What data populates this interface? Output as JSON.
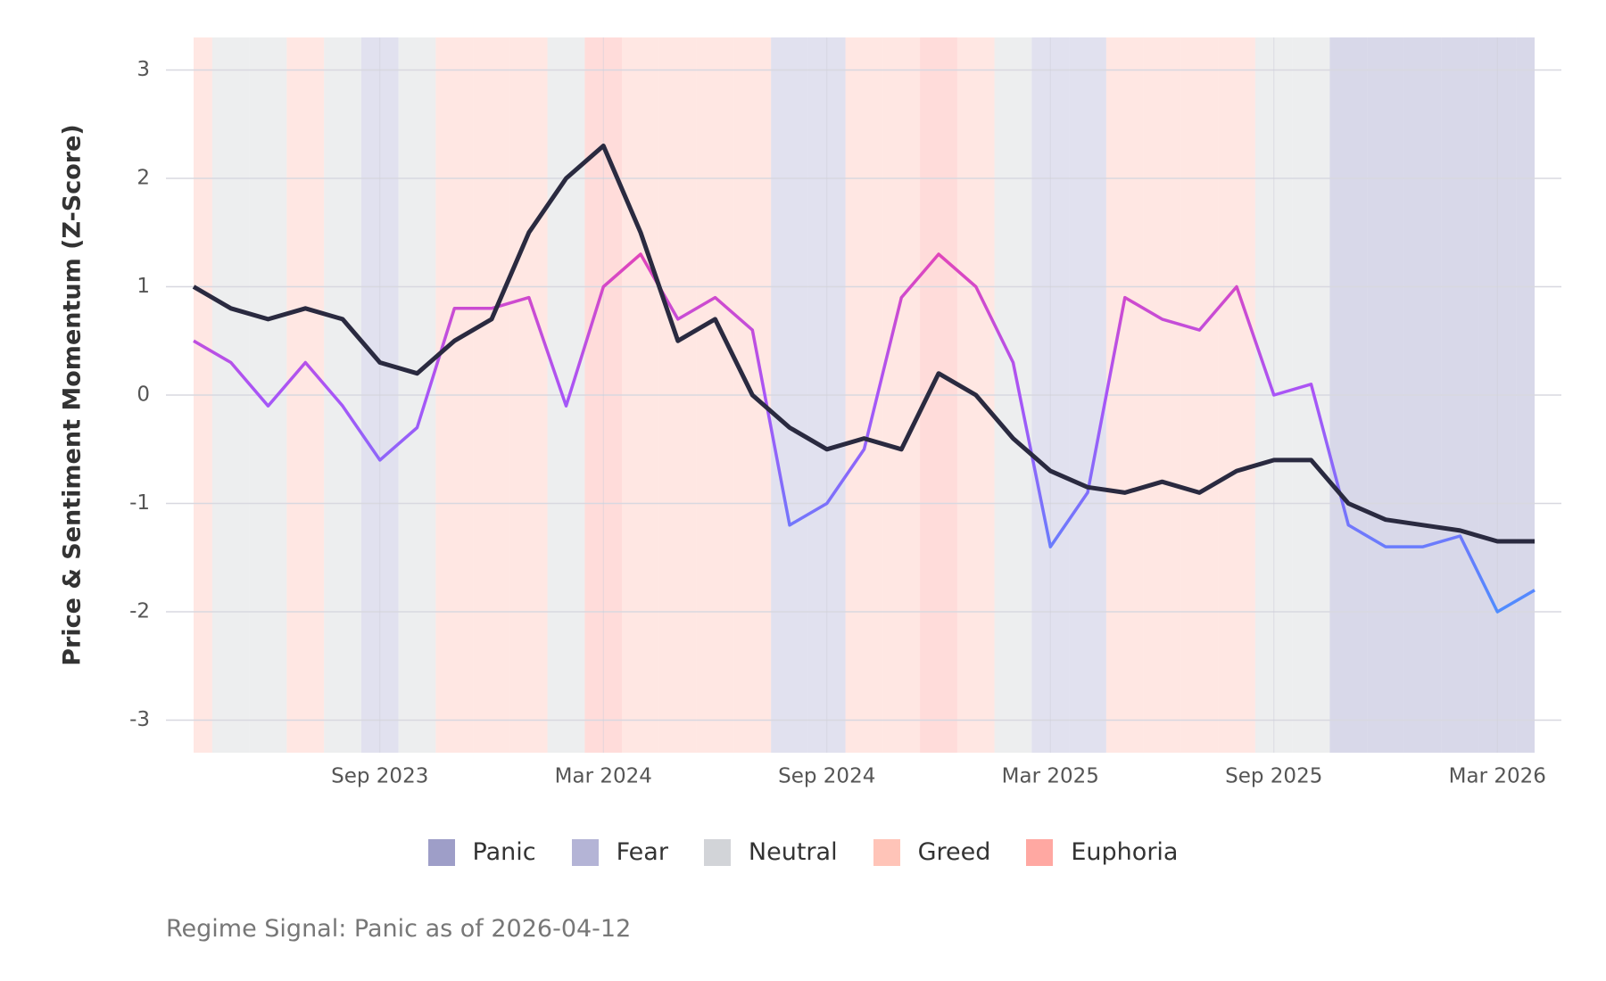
{
  "chart_data": {
    "type": "line",
    "ylabel": "Price & Sentiment Momentum (Z-Score)",
    "caption": "Regime Signal: Panic as of 2026-04-12",
    "x": [
      "2023-04",
      "2023-05",
      "2023-06",
      "2023-07",
      "2023-08",
      "2023-09",
      "2023-10",
      "2023-11",
      "2023-12",
      "2024-01",
      "2024-02",
      "2024-03",
      "2024-04",
      "2024-05",
      "2024-06",
      "2024-07",
      "2024-08",
      "2024-09",
      "2024-10",
      "2024-11",
      "2024-12",
      "2025-01",
      "2025-02",
      "2025-03",
      "2025-04",
      "2025-05",
      "2025-06",
      "2025-07",
      "2025-08",
      "2025-09",
      "2025-10",
      "2025-11",
      "2025-12",
      "2026-01",
      "2026-02",
      "2026-03",
      "2026-04"
    ],
    "regimes": [
      "Greed",
      "Neutral",
      "Neutral",
      "Greed",
      "Neutral",
      "Fear",
      "Neutral",
      "Greed",
      "Greed",
      "Greed",
      "Neutral",
      "Euphoria",
      "Greed",
      "Greed",
      "Greed",
      "Greed",
      "Fear",
      "Fear",
      "Greed",
      "Greed",
      "Euphoria",
      "Greed",
      "Neutral",
      "Fear",
      "Fear",
      "Greed",
      "Greed",
      "Greed",
      "Greed",
      "Neutral",
      "Neutral",
      "Panic",
      "Panic",
      "Panic",
      "Panic",
      "Panic",
      "Panic"
    ],
    "series": [
      {
        "color": "#2a2a40",
        "values": [
          1.0,
          0.8,
          0.7,
          0.8,
          0.7,
          0.3,
          0.2,
          0.5,
          0.7,
          1.5,
          2.0,
          2.3,
          1.5,
          0.5,
          0.7,
          0.0,
          -0.3,
          -0.5,
          -0.4,
          -0.5,
          0.2,
          0.0,
          -0.4,
          -0.7,
          -0.85,
          -0.9,
          -0.8,
          -0.9,
          -0.7,
          -0.6,
          -0.6,
          -1.0,
          -1.15,
          -1.2,
          -1.25,
          -1.35,
          -1.35
        ]
      },
      {
        "gradient": [
          "#4f8dff",
          "#a855f7",
          "#ff3d9a"
        ],
        "values": [
          0.5,
          0.3,
          -0.1,
          0.3,
          -0.1,
          -0.6,
          -0.3,
          0.8,
          0.8,
          0.9,
          -0.1,
          1.0,
          1.3,
          0.7,
          0.9,
          0.6,
          -1.2,
          -1.0,
          -0.5,
          0.9,
          1.3,
          1.0,
          0.3,
          -1.4,
          -0.9,
          0.9,
          0.7,
          0.6,
          1.0,
          0.0,
          0.1,
          -1.2,
          -1.4,
          -1.4,
          -1.3,
          -2.0,
          -1.8
        ]
      }
    ],
    "legend": [
      {
        "name": "Panic",
        "color": "#9e9ec8"
      },
      {
        "name": "Fear",
        "color": "#b4b4d6"
      },
      {
        "name": "Neutral",
        "color": "#d2d4d8"
      },
      {
        "name": "Greed",
        "color": "#ffc4b8"
      },
      {
        "name": "Euphoria",
        "color": "#ffa8a2"
      }
    ],
    "xlim": [
      "2023-04",
      "2026-04"
    ],
    "xticks": [
      {
        "value": "2023-09",
        "label": "Sep 2023"
      },
      {
        "value": "2024-03",
        "label": "Mar 2024"
      },
      {
        "value": "2024-09",
        "label": "Sep 2024"
      },
      {
        "value": "2025-03",
        "label": "Mar 2025"
      },
      {
        "value": "2025-09",
        "label": "Sep 2025"
      },
      {
        "value": "2026-03",
        "label": "Mar 2026"
      }
    ],
    "ylim": [
      -3.3,
      3.3
    ],
    "yticks": [
      -3,
      -2,
      -1,
      0,
      1,
      2,
      3
    ],
    "grid": true
  }
}
